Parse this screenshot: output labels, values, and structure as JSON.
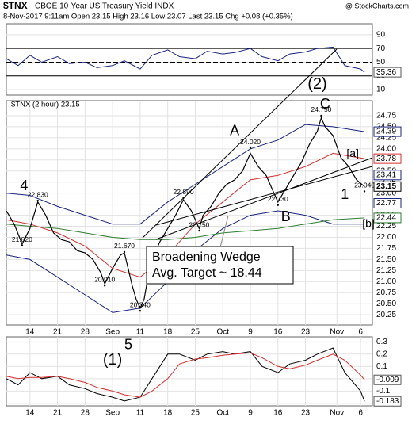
{
  "header": {
    "symbol": "$TNX",
    "name": "CBOE 10-Year US Treasury Yield INDX",
    "credit": "@ StockCharts.com",
    "stats": "8-Nov-2017 9:11am   Open 23.15  High 23.16  Low 23.07  Last 23.15  Chg +0.08 (+0.35%)"
  },
  "chart_data": [
    {
      "type": "line",
      "xlim": [
        -6,
        87
      ],
      "ylim": [
        2,
        106
      ],
      "yticks": [
        10,
        30,
        50,
        70,
        90
      ],
      "levels": [
        30,
        70
      ],
      "midline": 50,
      "series": [
        {
          "color": "#1a237e",
          "x": [
            -6,
            -3,
            0,
            3,
            7,
            10,
            14,
            17,
            21,
            24,
            28,
            31,
            35,
            38,
            42,
            45,
            49,
            52,
            56,
            59,
            63,
            66,
            70,
            73,
            77,
            80,
            84,
            85
          ],
          "values": [
            55,
            45,
            60,
            50,
            58,
            48,
            50,
            42,
            45,
            52,
            40,
            60,
            68,
            58,
            55,
            66,
            62,
            64,
            70,
            58,
            52,
            62,
            65,
            70,
            72,
            45,
            40,
            35.36
          ]
        }
      ],
      "markers": [
        {
          "value": 35.36,
          "color": "#555555"
        }
      ]
    },
    {
      "type": "line",
      "legend": "$TNX (2 hour) 23.15",
      "xlim": [
        -6,
        87
      ],
      "ylim": [
        20.02,
        25.09
      ],
      "yticks": [
        20.25,
        {
          "value": 20.5,
          "label": "20.50"
        },
        20.75,
        {
          "value": 21,
          "label": "21.00"
        },
        21.25,
        {
          "value": 21.5,
          "label": "21.50"
        },
        21.75,
        {
          "value": 22,
          "label": "22.00"
        },
        22.25,
        {
          "value": 22.5,
          "label": "22.50"
        },
        22.75,
        {
          "value": 23,
          "label": "23.00"
        },
        23.25,
        {
          "value": 23.5,
          "label": "23.50"
        },
        23.75,
        {
          "value": 24,
          "label": "24.00"
        },
        24.25,
        {
          "value": 24.5,
          "label": "24.50"
        },
        24.75
      ],
      "xticks": [
        {
          "value": 0,
          "label": "14"
        },
        {
          "value": 7,
          "label": "21"
        },
        {
          "value": 14,
          "label": "28"
        },
        {
          "value": 21,
          "label": "Sep"
        },
        {
          "value": 28,
          "label": "11"
        },
        {
          "value": 35,
          "label": "18"
        },
        {
          "value": 42,
          "label": "25"
        },
        {
          "value": 49,
          "label": "Oct"
        },
        {
          "value": 56,
          "label": "9"
        },
        {
          "value": 63,
          "label": "16"
        },
        {
          "value": 70,
          "label": "23"
        },
        {
          "value": 78,
          "label": "Nov"
        },
        {
          "value": 84,
          "label": "6"
        }
      ],
      "series": [
        {
          "color": "#1a237e",
          "x": [
            -6,
            0,
            7,
            14,
            21,
            28,
            35,
            42,
            49,
            56,
            63,
            70,
            77,
            85
          ],
          "values": [
            23.0,
            22.95,
            22.7,
            22.5,
            22.3,
            22.3,
            22.8,
            23.2,
            23.6,
            24.0,
            24.2,
            24.55,
            24.5,
            24.39
          ]
        },
        {
          "color": "#1a237e",
          "x": [
            -6,
            0,
            7,
            14,
            21,
            28,
            35,
            42,
            49,
            56,
            63,
            70,
            77,
            85
          ],
          "values": [
            21.6,
            21.5,
            21.1,
            20.7,
            20.3,
            20.4,
            21.0,
            21.7,
            22.2,
            22.5,
            22.6,
            22.5,
            22.3,
            22.3
          ]
        },
        {
          "color": "#2e7d32",
          "x": [
            -6,
            0,
            7,
            14,
            21,
            28,
            35,
            42,
            49,
            56,
            63,
            70,
            77,
            85
          ],
          "values": [
            22.3,
            22.25,
            22.2,
            22.1,
            22.0,
            21.95,
            21.95,
            22.0,
            22.1,
            22.15,
            22.2,
            22.3,
            22.4,
            22.44
          ]
        },
        {
          "color": "#d32f2f",
          "x": [
            -6,
            0,
            7,
            14,
            21,
            28,
            35,
            42,
            49,
            56,
            63,
            70,
            77,
            85
          ],
          "values": [
            22.4,
            22.3,
            22.1,
            21.8,
            21.3,
            21.1,
            21.6,
            22.3,
            22.8,
            23.3,
            23.4,
            23.6,
            23.9,
            23.78
          ]
        },
        {
          "color": "#000000",
          "x": [
            -6,
            -4,
            -2,
            0,
            2,
            4,
            6,
            8,
            10,
            12,
            14,
            16,
            18,
            19,
            21,
            23,
            24,
            26,
            27,
            28,
            29,
            30,
            31,
            33,
            35,
            37,
            39,
            41,
            43,
            44,
            46,
            48,
            50,
            52,
            54,
            56,
            58,
            60,
            62,
            63,
            65,
            67,
            69,
            71,
            73,
            74,
            75,
            77,
            79,
            81,
            83,
            85
          ],
          "values": [
            22.6,
            22.3,
            21.85,
            22.2,
            22.8,
            22.5,
            22.1,
            21.95,
            21.9,
            21.7,
            21.65,
            21.5,
            21.2,
            20.95,
            21.3,
            21.6,
            21.65,
            20.9,
            20.6,
            20.4,
            20.6,
            21.1,
            21.5,
            21.9,
            22.2,
            22.5,
            22.85,
            22.6,
            22.2,
            22.5,
            22.7,
            23.0,
            23.2,
            23.3,
            23.5,
            23.9,
            23.6,
            23.4,
            23.0,
            22.8,
            23.1,
            23.4,
            23.7,
            24.1,
            24.4,
            24.7,
            24.5,
            24.3,
            23.8,
            23.6,
            23.3,
            23.15
          ]
        }
      ],
      "point_labels": [
        {
          "x": 2,
          "value": 22.83,
          "label": "22.830"
        },
        {
          "x": -2,
          "value": 21.82,
          "label": "21.820"
        },
        {
          "x": 24,
          "value": 21.67,
          "label": "21.670"
        },
        {
          "x": 19,
          "value": 20.91,
          "label": "20.910"
        },
        {
          "x": 28,
          "value": 20.34,
          "label": "20.340"
        },
        {
          "x": 39,
          "value": 22.89,
          "label": "22.890"
        },
        {
          "x": 43,
          "value": 22.15,
          "label": "22.150"
        },
        {
          "x": 56,
          "value": 24.02,
          "label": "24.020"
        },
        {
          "x": 63,
          "value": 22.73,
          "label": "22.730"
        },
        {
          "x": 74,
          "value": 24.75,
          "label": "24.750"
        },
        {
          "x": 85,
          "value": 23.04,
          "label": "23.040"
        }
      ],
      "markers": [
        {
          "value": 24.39,
          "color": "#1a237e"
        },
        {
          "value": 23.78,
          "color": "#d32f2f"
        },
        {
          "value": 23.41,
          "color": "#1a237e"
        },
        {
          "value": 23.15,
          "color": "#000000"
        },
        {
          "value": 22.77,
          "color": "#1a237e"
        },
        {
          "value": 22.44,
          "color": "#2e7d32"
        }
      ],
      "waves": [
        "4",
        "A",
        "C",
        "(2)",
        "[a]",
        "1",
        "[b]",
        "B"
      ],
      "annotation": [
        "Broadening Wedge",
        "Avg. Target ~ 18.44"
      ]
    },
    {
      "type": "line",
      "xlim": [
        -6,
        87
      ],
      "ylim": [
        -0.22,
        0.34
      ],
      "yticks": [
        0.3,
        0.2,
        0.1,
        {
          "value": 0,
          "label": "0.0"
        },
        -0.1,
        -0.2
      ],
      "xticks": [
        {
          "value": 0,
          "label": "14"
        },
        {
          "value": 7,
          "label": "21"
        },
        {
          "value": 14,
          "label": "28"
        },
        {
          "value": 21,
          "label": "Sep"
        },
        {
          "value": 28,
          "label": "11"
        },
        {
          "value": 35,
          "label": "18"
        },
        {
          "value": 42,
          "label": "25"
        },
        {
          "value": 49,
          "label": "Oct"
        },
        {
          "value": 56,
          "label": "9"
        },
        {
          "value": 63,
          "label": "16"
        },
        {
          "value": 70,
          "label": "23"
        },
        {
          "value": 78,
          "label": "Nov"
        },
        {
          "value": 84,
          "label": "6"
        }
      ],
      "series": [
        {
          "color": "#000000",
          "x": [
            -6,
            -3,
            0,
            3,
            7,
            10,
            14,
            17,
            21,
            24,
            28,
            31,
            35,
            38,
            42,
            45,
            49,
            52,
            56,
            59,
            63,
            66,
            70,
            73,
            77,
            80,
            84,
            85
          ],
          "values": [
            0.0,
            -0.05,
            0.05,
            0.0,
            0.02,
            -0.05,
            -0.08,
            -0.12,
            -0.15,
            -0.18,
            -0.15,
            0.0,
            0.2,
            0.2,
            0.15,
            0.2,
            0.22,
            0.2,
            0.22,
            0.1,
            0.05,
            0.12,
            0.15,
            0.2,
            0.25,
            0.05,
            -0.1,
            -0.183
          ]
        },
        {
          "color": "#d32f2f",
          "x": [
            -6,
            -3,
            0,
            3,
            7,
            10,
            14,
            17,
            21,
            24,
            28,
            31,
            35,
            38,
            42,
            45,
            49,
            52,
            56,
            59,
            63,
            66,
            70,
            73,
            77,
            80,
            84,
            85
          ],
          "values": [
            0.02,
            0.0,
            0.01,
            0.01,
            0.02,
            0.0,
            -0.03,
            -0.07,
            -0.1,
            -0.13,
            -0.15,
            -0.1,
            0.0,
            0.12,
            0.16,
            0.17,
            0.19,
            0.2,
            0.21,
            0.17,
            0.1,
            0.08,
            0.11,
            0.15,
            0.2,
            0.15,
            0.03,
            -0.009
          ]
        }
      ],
      "markers": [
        {
          "value": -0.009,
          "color": "#555555"
        },
        {
          "value": -0.183,
          "color": "#555555"
        }
      ],
      "waves": [
        "5",
        "(1)"
      ]
    }
  ]
}
